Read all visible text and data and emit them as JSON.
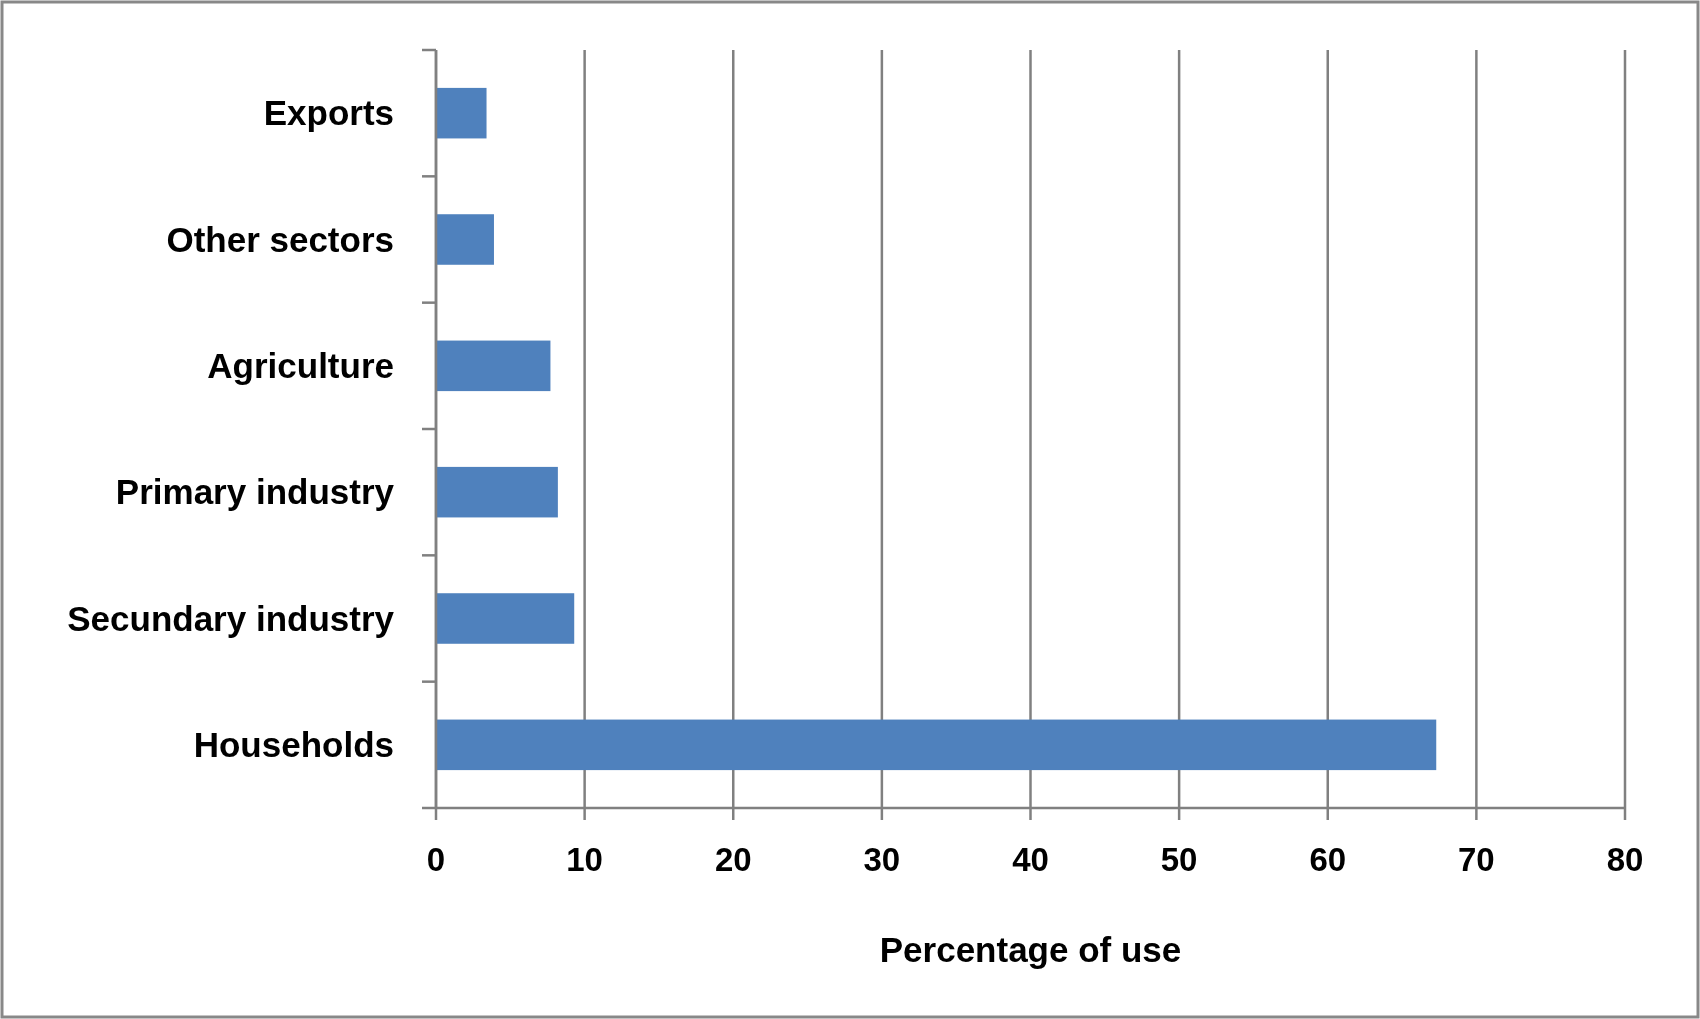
{
  "chart_data": {
    "type": "bar",
    "orientation": "horizontal",
    "xlabel": "Percentage of use",
    "categories": [
      "Exports",
      "Other sectors",
      "Agriculture",
      "Primary industry",
      "Secundary industry",
      "Households"
    ],
    "values": [
      3.4,
      3.9,
      7.7,
      8.2,
      9.3,
      67.3
    ],
    "color": "#4f81bd",
    "xlim": [
      0,
      80
    ],
    "xticks": [
      0,
      10,
      20,
      30,
      40,
      50,
      60,
      70,
      80
    ],
    "grid": "x"
  }
}
